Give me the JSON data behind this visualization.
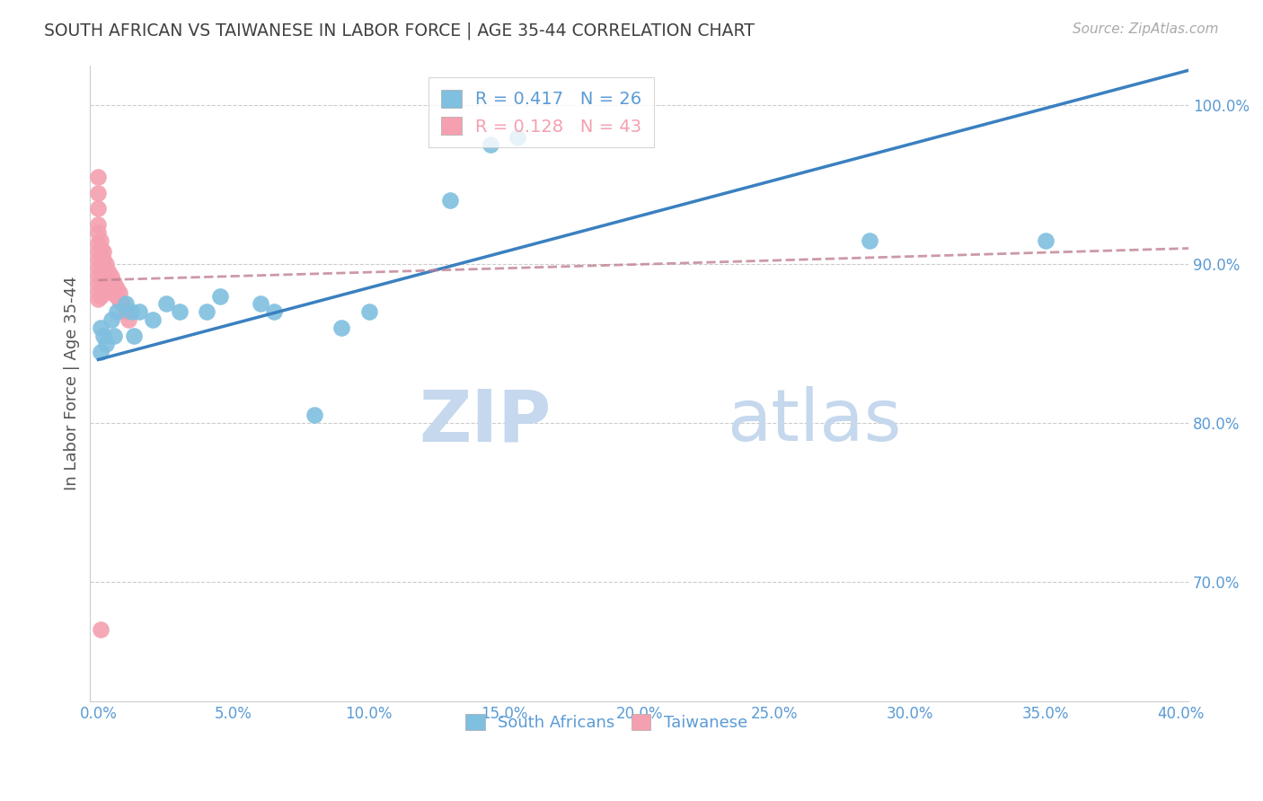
{
  "title": "SOUTH AFRICAN VS TAIWANESE IN LABOR FORCE | AGE 35-44 CORRELATION CHART",
  "source": "Source: ZipAtlas.com",
  "ylabel": "In Labor Force | Age 35-44",
  "xlim": [
    -0.003,
    0.403
  ],
  "ylim": [
    0.625,
    1.025
  ],
  "xticks": [
    0.0,
    0.05,
    0.1,
    0.15,
    0.2,
    0.25,
    0.3,
    0.35,
    0.4
  ],
  "yticks": [
    0.7,
    0.8,
    0.9,
    1.0
  ],
  "ytick_labels": [
    "70.0%",
    "80.0%",
    "90.0%",
    "100.0%"
  ],
  "xtick_labels": [
    "0.0%",
    "5.0%",
    "10.0%",
    "15.0%",
    "20.0%",
    "25.0%",
    "30.0%",
    "35.0%",
    "40.0%"
  ],
  "grid_color": "#cccccc",
  "background_color": "#ffffff",
  "blue_color": "#7fbfdf",
  "pink_color": "#f4a0b0",
  "blue_line_color": "#3a80c0",
  "pink_line_color": "#c08090",
  "axis_label_color": "#5b9bd5",
  "title_color": "#404040",
  "legend_R_blue": "R = 0.417",
  "legend_N_blue": "N = 26",
  "legend_R_pink": "R = 0.128",
  "legend_N_pink": "N = 43",
  "watermark_zip": "ZIP",
  "watermark_atlas": "atlas",
  "south_african_x": [
    0.001,
    0.001,
    0.002,
    0.003,
    0.005,
    0.006,
    0.007,
    0.01,
    0.012,
    0.013,
    0.015,
    0.02,
    0.025,
    0.03,
    0.04,
    0.045,
    0.06,
    0.065,
    0.08,
    0.09,
    0.1,
    0.13,
    0.145,
    0.155,
    0.285,
    0.35
  ],
  "south_african_y": [
    0.845,
    0.86,
    0.855,
    0.85,
    0.865,
    0.855,
    0.87,
    0.875,
    0.87,
    0.855,
    0.87,
    0.865,
    0.875,
    0.87,
    0.87,
    0.88,
    0.875,
    0.87,
    0.805,
    0.86,
    0.87,
    0.94,
    0.975,
    0.98,
    0.915,
    0.915
  ],
  "taiwanese_x": [
    0.0,
    0.0,
    0.0,
    0.0,
    0.0,
    0.0,
    0.0,
    0.0,
    0.0,
    0.0,
    0.0,
    0.0,
    0.0,
    0.001,
    0.001,
    0.001,
    0.001,
    0.001,
    0.001,
    0.001,
    0.001,
    0.002,
    0.002,
    0.002,
    0.002,
    0.003,
    0.003,
    0.003,
    0.004,
    0.004,
    0.005,
    0.005,
    0.005,
    0.006,
    0.006,
    0.007,
    0.007,
    0.008,
    0.008,
    0.009,
    0.01,
    0.011,
    0.001
  ],
  "taiwanese_y": [
    0.955,
    0.945,
    0.935,
    0.925,
    0.92,
    0.913,
    0.908,
    0.903,
    0.898,
    0.893,
    0.888,
    0.883,
    0.878,
    0.915,
    0.91,
    0.905,
    0.9,
    0.895,
    0.89,
    0.885,
    0.88,
    0.908,
    0.903,
    0.898,
    0.893,
    0.9,
    0.895,
    0.89,
    0.895,
    0.89,
    0.892,
    0.887,
    0.882,
    0.888,
    0.883,
    0.885,
    0.88,
    0.882,
    0.877,
    0.875,
    0.87,
    0.865,
    0.67
  ],
  "blue_line_x0": 0.0,
  "blue_line_y0": 0.84,
  "blue_line_x1": 0.403,
  "blue_line_y1": 1.022,
  "pink_line_x0": 0.0,
  "pink_line_y0": 0.89,
  "pink_line_x1": 0.403,
  "pink_line_y1": 0.91
}
